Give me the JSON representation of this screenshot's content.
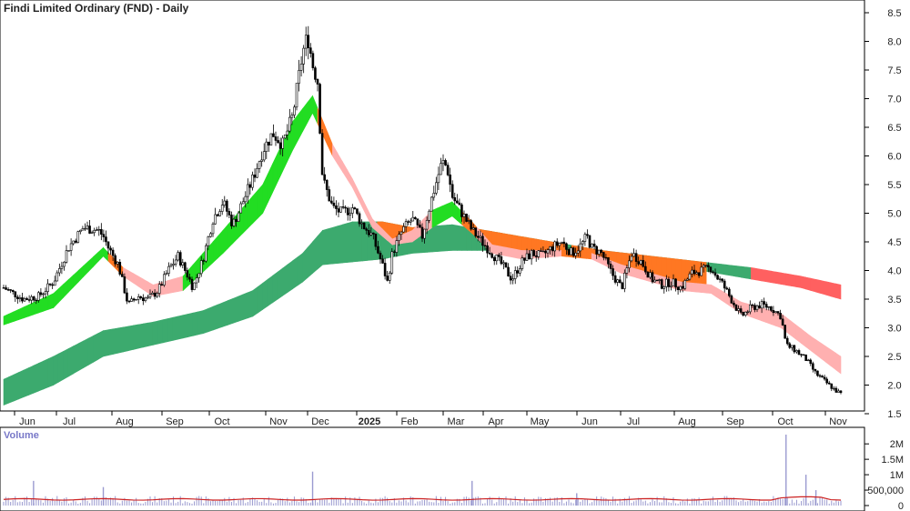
{
  "chart_data": {
    "type": "candlestick",
    "title": "Findi Limited Ordinary (FND) - Daily",
    "y_ticks": [
      "8.5",
      "8.0",
      "7.5",
      "7.0",
      "6.5",
      "6.0",
      "5.5",
      "5.0",
      "4.5",
      "4.0",
      "3.5",
      "3.0",
      "2.5",
      "2.0",
      "1.5"
    ],
    "ylim": [
      1.5,
      8.5
    ],
    "x_ticks": [
      "Jun",
      "Jul",
      "Aug",
      "Sep",
      "Oct",
      "Nov",
      "Dec",
      "2025",
      "Feb",
      "Mar",
      "Apr",
      "May",
      "Jun",
      "Jul",
      "Aug",
      "Sep",
      "Oct",
      "Nov"
    ],
    "x_tick_bold": "2025",
    "price_path": [
      [
        0,
        3.7
      ],
      [
        4,
        3.5
      ],
      [
        7,
        3.55
      ],
      [
        10,
        3.8
      ],
      [
        13,
        4.4
      ],
      [
        16,
        4.75
      ],
      [
        19,
        4.7
      ],
      [
        20,
        4.6
      ],
      [
        21,
        4.4
      ],
      [
        23,
        4.1
      ],
      [
        25,
        3.4
      ],
      [
        27,
        3.55
      ],
      [
        29,
        3.5
      ],
      [
        31,
        3.65
      ],
      [
        33,
        4.0
      ],
      [
        35,
        4.25
      ],
      [
        37,
        3.9
      ],
      [
        38,
        3.7
      ],
      [
        40,
        4.2
      ],
      [
        42,
        4.9
      ],
      [
        44,
        5.2
      ],
      [
        46,
        4.8
      ],
      [
        48,
        5.2
      ],
      [
        50,
        5.6
      ],
      [
        52,
        6.1
      ],
      [
        54,
        6.4
      ],
      [
        56,
        6.2
      ],
      [
        58,
        6.7
      ],
      [
        60,
        7.8
      ],
      [
        61,
        8.1
      ],
      [
        62,
        7.6
      ],
      [
        63,
        7.3
      ],
      [
        64,
        5.6
      ],
      [
        66,
        5.1
      ],
      [
        68,
        5.0
      ],
      [
        70,
        5.1
      ],
      [
        72,
        4.8
      ],
      [
        74,
        4.6
      ],
      [
        76,
        4.1
      ],
      [
        77,
        3.8
      ],
      [
        78,
        4.3
      ],
      [
        80,
        4.7
      ],
      [
        82,
        4.9
      ],
      [
        84,
        4.6
      ],
      [
        86,
        5.3
      ],
      [
        88,
        5.9
      ],
      [
        89,
        5.8
      ],
      [
        90,
        5.3
      ],
      [
        92,
        5.0
      ],
      [
        94,
        4.7
      ],
      [
        96,
        4.5
      ],
      [
        98,
        4.3
      ],
      [
        100,
        4.1
      ],
      [
        102,
        3.85
      ],
      [
        104,
        4.15
      ],
      [
        106,
        4.3
      ],
      [
        108,
        4.25
      ],
      [
        110,
        4.4
      ],
      [
        112,
        4.5
      ],
      [
        114,
        4.3
      ],
      [
        116,
        4.45
      ],
      [
        117,
        4.6
      ],
      [
        118,
        4.4
      ],
      [
        120,
        4.3
      ],
      [
        122,
        3.95
      ],
      [
        124,
        3.7
      ],
      [
        126,
        4.3
      ],
      [
        128,
        4.15
      ],
      [
        130,
        3.85
      ],
      [
        132,
        3.75
      ],
      [
        134,
        3.8
      ],
      [
        136,
        3.7
      ],
      [
        138,
        3.95
      ],
      [
        140,
        4.0
      ],
      [
        142,
        4.05
      ],
      [
        143,
        3.9
      ],
      [
        144,
        3.8
      ],
      [
        146,
        3.5
      ],
      [
        148,
        3.2
      ],
      [
        150,
        3.35
      ],
      [
        152,
        3.4
      ],
      [
        154,
        3.35
      ],
      [
        156,
        3.2
      ],
      [
        157,
        2.7
      ],
      [
        159,
        2.6
      ],
      [
        161,
        2.45
      ],
      [
        163,
        2.2
      ],
      [
        165,
        2.05
      ],
      [
        167,
        1.9
      ],
      [
        168,
        1.85
      ]
    ],
    "ema_short_upper": [
      [
        0,
        3.2
      ],
      [
        10,
        3.6
      ],
      [
        20,
        4.4
      ],
      [
        24,
        4.05
      ],
      [
        30,
        3.75
      ],
      [
        36,
        3.9
      ],
      [
        44,
        4.7
      ],
      [
        52,
        5.5
      ],
      [
        58,
        6.6
      ],
      [
        62,
        7.05
      ],
      [
        66,
        6.2
      ],
      [
        70,
        5.6
      ],
      [
        74,
        4.9
      ],
      [
        78,
        4.55
      ],
      [
        82,
        4.7
      ],
      [
        86,
        5.05
      ],
      [
        90,
        5.2
      ],
      [
        94,
        4.85
      ],
      [
        98,
        4.45
      ],
      [
        104,
        4.35
      ],
      [
        112,
        4.35
      ],
      [
        118,
        4.3
      ],
      [
        124,
        4.1
      ],
      [
        130,
        3.95
      ],
      [
        136,
        3.8
      ],
      [
        142,
        3.75
      ],
      [
        148,
        3.45
      ],
      [
        156,
        3.25
      ],
      [
        162,
        2.85
      ],
      [
        168,
        2.5
      ]
    ],
    "ema_short_lower": [
      [
        0,
        3.05
      ],
      [
        10,
        3.35
      ],
      [
        20,
        4.25
      ],
      [
        24,
        3.9
      ],
      [
        30,
        3.55
      ],
      [
        36,
        3.65
      ],
      [
        44,
        4.3
      ],
      [
        52,
        5.0
      ],
      [
        58,
        6.1
      ],
      [
        62,
        6.75
      ],
      [
        66,
        6.0
      ],
      [
        70,
        5.45
      ],
      [
        74,
        4.75
      ],
      [
        78,
        4.45
      ],
      [
        82,
        4.5
      ],
      [
        86,
        4.75
      ],
      [
        90,
        4.95
      ],
      [
        94,
        4.65
      ],
      [
        98,
        4.3
      ],
      [
        104,
        4.2
      ],
      [
        112,
        4.25
      ],
      [
        118,
        4.2
      ],
      [
        124,
        3.95
      ],
      [
        130,
        3.8
      ],
      [
        136,
        3.65
      ],
      [
        142,
        3.6
      ],
      [
        148,
        3.25
      ],
      [
        156,
        3.0
      ],
      [
        162,
        2.6
      ],
      [
        168,
        2.2
      ]
    ],
    "ema_long_upper": [
      [
        0,
        2.1
      ],
      [
        10,
        2.5
      ],
      [
        20,
        2.95
      ],
      [
        30,
        3.1
      ],
      [
        40,
        3.3
      ],
      [
        50,
        3.65
      ],
      [
        60,
        4.3
      ],
      [
        64,
        4.7
      ],
      [
        70,
        4.85
      ],
      [
        76,
        4.85
      ],
      [
        82,
        4.75
      ],
      [
        90,
        4.8
      ],
      [
        100,
        4.65
      ],
      [
        110,
        4.5
      ],
      [
        120,
        4.35
      ],
      [
        130,
        4.25
      ],
      [
        140,
        4.15
      ],
      [
        150,
        4.05
      ],
      [
        160,
        3.9
      ],
      [
        168,
        3.75
      ]
    ],
    "ema_long_lower": [
      [
        0,
        1.65
      ],
      [
        10,
        2.0
      ],
      [
        20,
        2.5
      ],
      [
        30,
        2.7
      ],
      [
        40,
        2.9
      ],
      [
        50,
        3.2
      ],
      [
        60,
        3.8
      ],
      [
        64,
        4.1
      ],
      [
        70,
        4.15
      ],
      [
        76,
        4.2
      ],
      [
        82,
        4.3
      ],
      [
        90,
        4.35
      ],
      [
        100,
        4.35
      ],
      [
        110,
        4.3
      ],
      [
        120,
        4.2
      ],
      [
        130,
        4.1
      ],
      [
        140,
        4.0
      ],
      [
        150,
        3.85
      ],
      [
        160,
        3.7
      ],
      [
        168,
        3.5
      ]
    ],
    "volume_panel": {
      "title": "Volume",
      "y_ticks": [
        "2M",
        "1.5M",
        "1M",
        "500,000",
        "0"
      ],
      "ylim": [
        0,
        2300000
      ],
      "spikes": [
        [
          6,
          800000
        ],
        [
          20,
          600000
        ],
        [
          62,
          1100000
        ],
        [
          94,
          800000
        ],
        [
          115,
          400000
        ],
        [
          157,
          2300000
        ],
        [
          161,
          1000000
        ],
        [
          163,
          500000
        ]
      ],
      "ma_level": 200000
    },
    "colors": {
      "price": "#000000",
      "ema_short_up": "#22dd22",
      "ema_short_down": "#ffb0b0",
      "ema_long_up": "#3caa6e",
      "ema_long_down": "#ff6060",
      "cross_zone": "#ff7722",
      "volume_bar": "#9a9ad0",
      "volume_ma": "#cc2222"
    }
  }
}
